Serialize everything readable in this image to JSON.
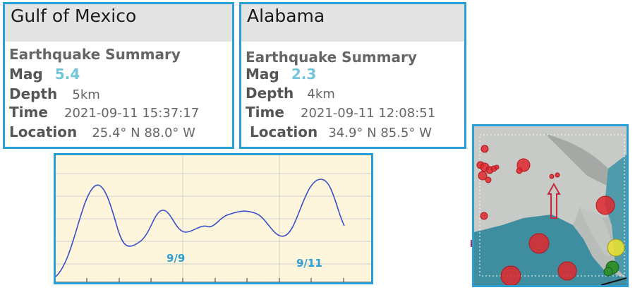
{
  "card_gulf": {
    "title": "Gulf of Mexico",
    "summary": "Earthquake Summary",
    "mag_label": "Mag",
    "mag_value": "5.4",
    "depth_label": "Depth",
    "depth_value": "5km",
    "time_label": "Time",
    "time_value": "2021-09-11 15:37:17",
    "location_label": "Location",
    "location_value": "25.4° N 88.0° W"
  },
  "card_alabama": {
    "title": "Alabama",
    "summary": "Earthquake Summary",
    "mag_label": "Mag",
    "mag_value": "2.3",
    "depth_label": "Depth",
    "depth_value": "4km",
    "time_label": "Time",
    "time_value": "2021-09-11 12:08:51",
    "location_label": "Location",
    "location_value": "34.9° N 85.5° W"
  },
  "chart": {
    "label_a": "9/9",
    "label_b": "9/11"
  },
  "colors": {
    "border": "#2a9fd6",
    "mag": "#72c4d9",
    "line": "#3a4fc8",
    "chart_bg": "#fdf5dc"
  }
}
